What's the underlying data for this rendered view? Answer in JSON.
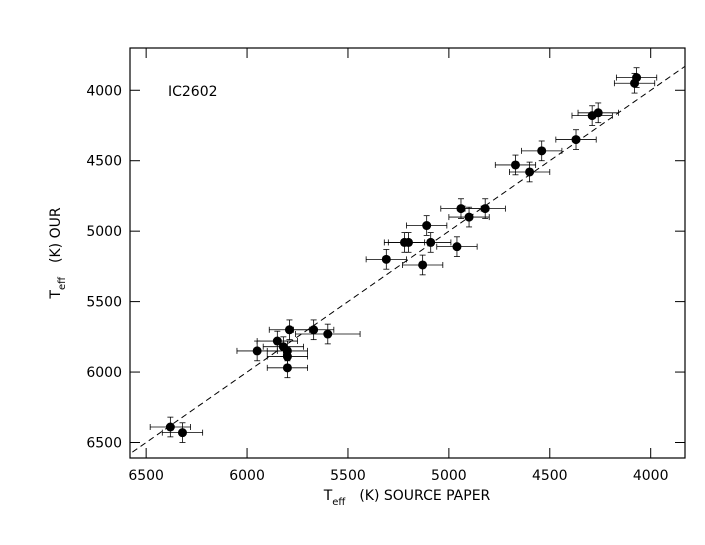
{
  "chart_data": {
    "type": "scatter",
    "annotation": "IC2602",
    "xlabel": [
      "T",
      "eff",
      "(K) SOURCE PAPER"
    ],
    "ylabel": [
      "T",
      "eff",
      "(K) OUR"
    ],
    "xlim": [
      6580,
      3830
    ],
    "ylim": [
      6610,
      3700
    ],
    "xticks": [
      6500,
      6000,
      5500,
      5000,
      4500,
      4000
    ],
    "yticks": [
      4000,
      4500,
      5000,
      5500,
      6000,
      6500
    ],
    "diagonal": true,
    "color": "#000000",
    "x": [
      6380,
      6320,
      5950,
      5850,
      5820,
      5800,
      5790,
      5800,
      5800,
      5670,
      5600,
      5310,
      5220,
      5200,
      5130,
      5110,
      5090,
      4960,
      4940,
      4900,
      4820,
      4670,
      4600,
      4540,
      4370,
      4290,
      4260,
      4080,
      4070
    ],
    "y": [
      6390,
      6430,
      5850,
      5780,
      5820,
      5850,
      5700,
      5890,
      5970,
      5700,
      5730,
      5200,
      5080,
      5080,
      5240,
      4960,
      5080,
      5110,
      4840,
      4900,
      4840,
      4530,
      4580,
      4430,
      4350,
      4180,
      4160,
      3950,
      3910
    ],
    "xerr": [
      100,
      100,
      100,
      100,
      100,
      100,
      100,
      100,
      100,
      100,
      160,
      100,
      100,
      100,
      100,
      100,
      100,
      100,
      100,
      100,
      100,
      100,
      100,
      100,
      100,
      100,
      100,
      100,
      100
    ],
    "yerr": [
      70,
      70,
      70,
      70,
      70,
      70,
      70,
      70,
      70,
      70,
      70,
      70,
      70,
      70,
      70,
      70,
      70,
      70,
      70,
      70,
      70,
      70,
      70,
      70,
      70,
      70,
      70,
      70,
      70
    ]
  }
}
